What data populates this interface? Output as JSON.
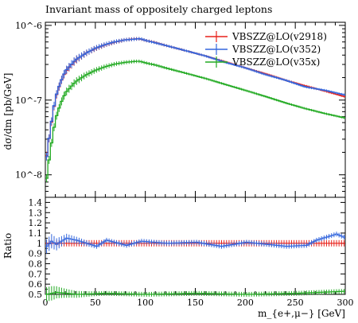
{
  "chart_data": [
    {
      "type": "line",
      "style": "histogram-with-errorbars",
      "title": "Invariant mass of oppositely charged leptons",
      "xlabel": "m_{e+,μ−} [GeV]",
      "ylabel": "dσ/dm [pb/GeV]",
      "xlim": [
        0,
        300
      ],
      "ylim": [
        5e-09,
        1.1e-06
      ],
      "yscale": "log",
      "bin_width_gev": 2.5,
      "y_ticks": [
        "10^-8",
        "10^-7",
        "10^-6"
      ],
      "x_ticks": [
        "0",
        "50",
        "100",
        "150",
        "200",
        "250",
        "300"
      ],
      "legend_placement": "top-right",
      "series": [
        {
          "name": "VBSZZ@LO(v2918)",
          "color": "#e8211a",
          "x_centers": [
            1.25,
            5,
            10,
            15,
            20,
            30,
            40,
            50,
            60,
            70,
            80,
            90,
            95,
            100,
            110,
            120,
            140,
            160,
            180,
            200,
            220,
            240,
            260,
            280,
            298.75
          ],
          "values": [
            1.8e-08,
            4e-08,
            1.05e-07,
            1.7e-07,
            2.4e-07,
            3.4e-07,
            4.2e-07,
            4.9e-07,
            5.5e-07,
            6e-07,
            6.4e-07,
            6.6e-07,
            6.6e-07,
            6.3e-07,
            5.9e-07,
            5.4e-07,
            4.6e-07,
            3.9e-07,
            3.25e-07,
            2.7e-07,
            2.25e-07,
            1.85e-07,
            1.55e-07,
            1.32e-07,
            1.12e-07
          ]
        },
        {
          "name": "VBSZZ@LO(v352)",
          "color": "#3366dd",
          "x_centers": [
            1.25,
            5,
            10,
            15,
            20,
            30,
            40,
            50,
            60,
            70,
            80,
            90,
            95,
            100,
            110,
            120,
            140,
            160,
            180,
            200,
            220,
            240,
            260,
            280,
            298.75
          ],
          "values": [
            1.75e-08,
            4.1e-08,
            1.07e-07,
            1.72e-07,
            2.45e-07,
            3.45e-07,
            4.2e-07,
            4.95e-07,
            5.55e-07,
            6.05e-07,
            6.4e-07,
            6.55e-07,
            6.65e-07,
            6.3e-07,
            5.85e-07,
            5.4e-07,
            4.6e-07,
            3.9e-07,
            3.2e-07,
            2.7e-07,
            2.2e-07,
            1.85e-07,
            1.5e-07,
            1.35e-07,
            1.18e-07
          ]
        },
        {
          "name": "VBSZZ@LO(v35x)",
          "color": "#22aa22",
          "x_centers": [
            1.25,
            5,
            10,
            15,
            20,
            30,
            40,
            50,
            60,
            70,
            80,
            90,
            95,
            100,
            110,
            120,
            140,
            160,
            180,
            200,
            220,
            240,
            260,
            280,
            298.75
          ],
          "values": [
            9e-09,
            2.1e-08,
            5.5e-08,
            8.8e-08,
            1.25e-07,
            1.75e-07,
            2.15e-07,
            2.5e-07,
            2.8e-07,
            3.05e-07,
            3.2e-07,
            3.3e-07,
            3.3e-07,
            3.15e-07,
            2.95e-07,
            2.7e-07,
            2.3e-07,
            1.95e-07,
            1.62e-07,
            1.35e-07,
            1.12e-07,
            9.2e-08,
            7.7e-08,
            6.6e-08,
            5.8e-08
          ]
        }
      ]
    },
    {
      "type": "line",
      "style": "ratio-histogram",
      "ylabel": "Ratio",
      "xlabel": "m_{e+,μ−} [GeV]",
      "xlim": [
        0,
        300
      ],
      "ylim": [
        0.5,
        1.45
      ],
      "y_ticks": [
        "0.5",
        "0.6",
        "0.7",
        "0.8",
        "0.9",
        "1",
        "1.1",
        "1.2",
        "1.3",
        "1.4"
      ],
      "x_ticks": [
        "0",
        "50",
        "100",
        "150",
        "200",
        "250",
        "300"
      ],
      "series": [
        {
          "name": "VBSZZ@LO(v2918)",
          "color": "#e8211a",
          "x_centers": [
            1.25,
            50,
            100,
            150,
            200,
            250,
            298.75
          ],
          "values": [
            1.0,
            1.0,
            1.0,
            1.0,
            1.0,
            1.0,
            1.0
          ]
        },
        {
          "name": "VBSZZ@LO(v352)",
          "color": "#3366dd",
          "x_centers": [
            1.25,
            6.25,
            11.25,
            21.25,
            31.25,
            51.25,
            61.25,
            81.25,
            96.25,
            121.25,
            151.25,
            176.25,
            201.25,
            221.25,
            241.25,
            261.25,
            271.25,
            281.25,
            291.25,
            298.75
          ],
          "values": [
            0.97,
            1.02,
            0.99,
            1.05,
            1.03,
            0.97,
            1.03,
            0.98,
            1.02,
            1.0,
            1.01,
            0.97,
            1.01,
            0.99,
            0.97,
            0.98,
            1.03,
            1.06,
            1.09,
            1.06
          ]
        },
        {
          "name": "VBSZZ@LO(v35x)",
          "color": "#22aa22",
          "x_centers": [
            1.25,
            6.25,
            11.25,
            31.25,
            61.25,
            101.25,
            151.25,
            201.25,
            251.25,
            298.75
          ],
          "values": [
            0.5,
            0.51,
            0.52,
            0.5,
            0.51,
            0.5,
            0.51,
            0.5,
            0.51,
            0.53
          ]
        }
      ]
    }
  ]
}
